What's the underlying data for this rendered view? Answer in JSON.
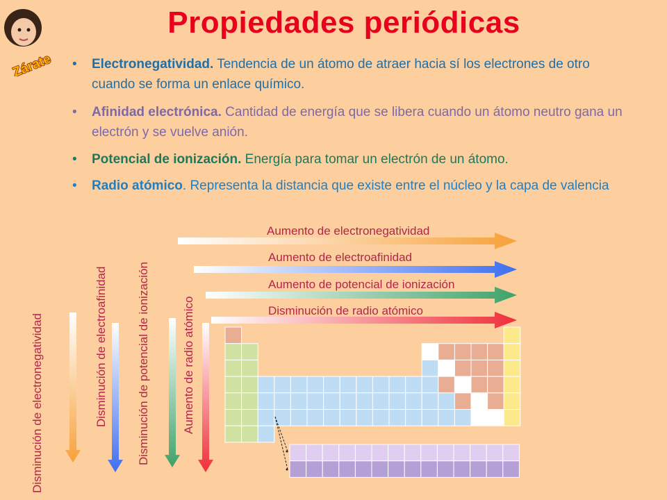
{
  "title": "Propiedades periódicas",
  "logo_text": "Zárate",
  "bullets": [
    {
      "term": "Electronegatividad.",
      "definition": "Tendencia de un átomo de atraer hacia sí los electrones de otro cuando se forma un enlace químico."
    },
    {
      "term": "Afinidad electrónica.",
      "definition": "Cantidad de energía que se libera cuando un átomo neutro gana un electrón y se vuelve anión."
    },
    {
      "term": "Potencial de ionización.",
      "definition": "Energía para tomar un electrón de un átomo."
    },
    {
      "term": "Radio atómico",
      "definition": ". Representa la distancia que existe entre el núcleo y la capa de valencia"
    }
  ],
  "horizontal_arrows": [
    {
      "label": "Aumento de electronegatividad",
      "color": "#f7a13a"
    },
    {
      "label": "Aumento de electroafinidad",
      "color": "#3f6ff0"
    },
    {
      "label": "Aumento de potencial de ionización",
      "color": "#3fa26a"
    },
    {
      "label": "Disminución de radio atómico",
      "color": "#ef2f3a"
    }
  ],
  "vertical_arrows": [
    {
      "label": "Disminución de electronegatividad",
      "color": "#f7a13a"
    },
    {
      "label": "Disminución de electroafinidad",
      "color": "#3f6ff0"
    },
    {
      "label": "Disminución de potencial de ionización",
      "color": "#3fa26a"
    },
    {
      "label": "Aumento de radio atómico",
      "color": "#ef2f3a"
    }
  ],
  "colors": {
    "background": "#fdcf9e",
    "title": "#e8001d",
    "s_block": "#cfe2a2",
    "d_block": "#bfdcf5",
    "p_metal": "#e9ad93",
    "p_white": "#ffffff",
    "noble": "#fbe98a",
    "lanthanides": "#e0cdef",
    "actinides": "#b4a0d6",
    "hydrogen": "#e9ad93"
  }
}
